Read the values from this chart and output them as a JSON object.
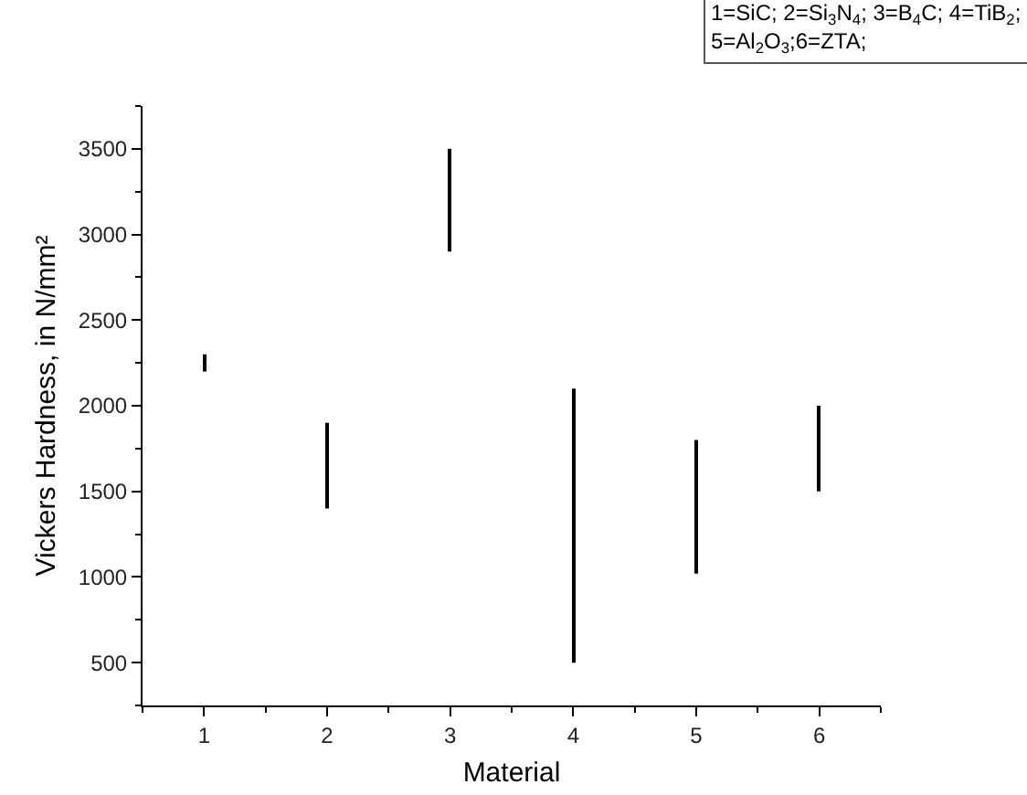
{
  "chart_data": {
    "type": "bar",
    "xlabel": "Material",
    "ylabel": "Vickers Hardness, in N/mm²",
    "annotations": [
      "1=SiC; 2=Si$_{3}$N$_{4}$; 3=B$_{4}$C; 4=TiB$_{2}$;",
      "5=Al$_{2}$O$_{3}$;6=ZTA;"
    ],
    "x": [
      1,
      2,
      3,
      4,
      5,
      6
    ],
    "base": [
      2200,
      1400,
      2900,
      500,
      1020,
      1500
    ],
    "values": [
      100,
      500,
      600,
      1600,
      780,
      500
    ],
    "color": "#000000",
    "xlim": [
      0.5,
      6.5
    ],
    "xticks": [
      1,
      2,
      3,
      4,
      5,
      6
    ],
    "ylim": [
      250,
      3750
    ],
    "yticks": [
      500,
      1000,
      1500,
      2000,
      2500,
      3000,
      3500
    ]
  }
}
